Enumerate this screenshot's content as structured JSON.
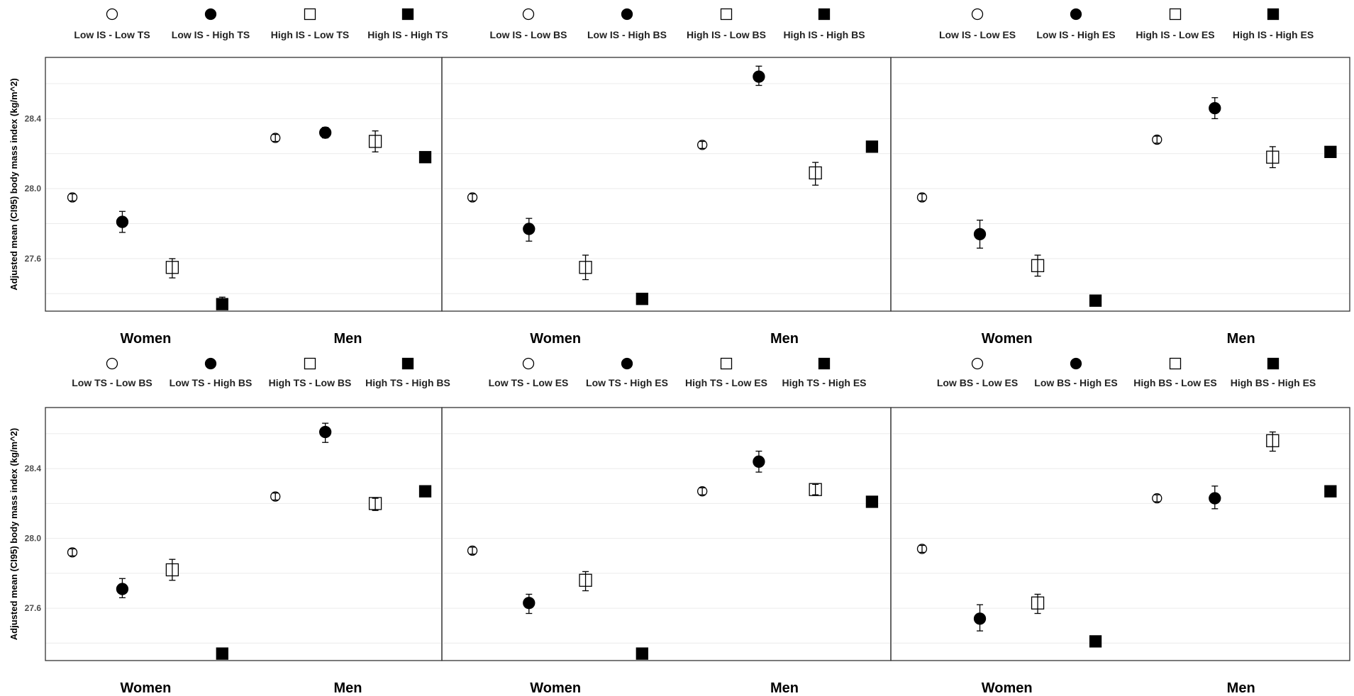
{
  "chart_data": {
    "type": "scatter",
    "y_axis": {
      "label": "Adjusted mean (CI95) body mass index (kg/m^2)",
      "ticks": [
        27.6,
        28.0,
        28.4
      ],
      "ylim": [
        27.3,
        28.75
      ]
    },
    "rows": [
      {
        "row": "top",
        "panels": [
          {
            "legend": [
              "Low IS - Low TS",
              "Low IS - High TS",
              "High IS - Low TS",
              "High IS - High TS"
            ],
            "groups": [
              "Women",
              "Men"
            ],
            "points": [
              {
                "group": "Women",
                "series": 0,
                "y": 27.95,
                "lo": 27.93,
                "hi": 27.97
              },
              {
                "group": "Women",
                "series": 1,
                "y": 27.81,
                "lo": 27.75,
                "hi": 27.87
              },
              {
                "group": "Women",
                "series": 2,
                "y": 27.55,
                "lo": 27.49,
                "hi": 27.6
              },
              {
                "group": "Women",
                "series": 3,
                "y": 27.34,
                "lo": 27.31,
                "hi": 27.38
              },
              {
                "group": "Men",
                "series": 0,
                "y": 28.29,
                "lo": 28.27,
                "hi": 28.31
              },
              {
                "group": "Men",
                "series": 1,
                "y": 28.32,
                "lo": 28.29,
                "hi": 28.35
              },
              {
                "group": "Men",
                "series": 2,
                "y": 28.27,
                "lo": 28.21,
                "hi": 28.33
              },
              {
                "group": "Men",
                "series": 3,
                "y": 28.18,
                "lo": 28.15,
                "hi": 28.21
              }
            ]
          },
          {
            "legend": [
              "Low IS - Low BS",
              "Low IS - High BS",
              "High IS - Low BS",
              "High IS - High BS"
            ],
            "groups": [
              "Women",
              "Men"
            ],
            "points": [
              {
                "group": "Women",
                "series": 0,
                "y": 27.95,
                "lo": 27.93,
                "hi": 27.97
              },
              {
                "group": "Women",
                "series": 1,
                "y": 27.77,
                "lo": 27.7,
                "hi": 27.83
              },
              {
                "group": "Women",
                "series": 2,
                "y": 27.55,
                "lo": 27.48,
                "hi": 27.62
              },
              {
                "group": "Women",
                "series": 3,
                "y": 27.37,
                "lo": 27.34,
                "hi": 27.4
              },
              {
                "group": "Men",
                "series": 0,
                "y": 28.25,
                "lo": 28.23,
                "hi": 28.27
              },
              {
                "group": "Men",
                "series": 1,
                "y": 28.64,
                "lo": 28.59,
                "hi": 28.7
              },
              {
                "group": "Men",
                "series": 2,
                "y": 28.09,
                "lo": 28.02,
                "hi": 28.15
              },
              {
                "group": "Men",
                "series": 3,
                "y": 28.24,
                "lo": 28.21,
                "hi": 28.27
              }
            ]
          },
          {
            "legend": [
              "Low IS - Low ES",
              "Low IS - High ES",
              "High IS - Low ES",
              "High IS - High ES"
            ],
            "groups": [
              "Women",
              "Men"
            ],
            "points": [
              {
                "group": "Women",
                "series": 0,
                "y": 27.95,
                "lo": 27.93,
                "hi": 27.97
              },
              {
                "group": "Women",
                "series": 1,
                "y": 27.74,
                "lo": 27.66,
                "hi": 27.82
              },
              {
                "group": "Women",
                "series": 2,
                "y": 27.56,
                "lo": 27.5,
                "hi": 27.62
              },
              {
                "group": "Women",
                "series": 3,
                "y": 27.36,
                "lo": 27.33,
                "hi": 27.39
              },
              {
                "group": "Men",
                "series": 0,
                "y": 28.28,
                "lo": 28.26,
                "hi": 28.3
              },
              {
                "group": "Men",
                "series": 1,
                "y": 28.46,
                "lo": 28.4,
                "hi": 28.52
              },
              {
                "group": "Men",
                "series": 2,
                "y": 28.18,
                "lo": 28.12,
                "hi": 28.24
              },
              {
                "group": "Men",
                "series": 3,
                "y": 28.21,
                "lo": 28.18,
                "hi": 28.24
              }
            ]
          }
        ]
      },
      {
        "row": "bottom",
        "panels": [
          {
            "legend": [
              "Low TS - Low BS",
              "Low TS - High BS",
              "High TS - Low BS",
              "High TS - High BS"
            ],
            "groups": [
              "Women",
              "Men"
            ],
            "points": [
              {
                "group": "Women",
                "series": 0,
                "y": 27.92,
                "lo": 27.9,
                "hi": 27.94
              },
              {
                "group": "Women",
                "series": 1,
                "y": 27.71,
                "lo": 27.66,
                "hi": 27.77
              },
              {
                "group": "Women",
                "series": 2,
                "y": 27.82,
                "lo": 27.76,
                "hi": 27.88
              },
              {
                "group": "Women",
                "series": 3,
                "y": 27.34,
                "lo": 27.31,
                "hi": 27.37
              },
              {
                "group": "Men",
                "series": 0,
                "y": 28.24,
                "lo": 28.22,
                "hi": 28.26
              },
              {
                "group": "Men",
                "series": 1,
                "y": 28.61,
                "lo": 28.55,
                "hi": 28.66
              },
              {
                "group": "Men",
                "series": 2,
                "y": 28.2,
                "lo": 28.16,
                "hi": 28.23
              },
              {
                "group": "Men",
                "series": 3,
                "y": 28.27,
                "lo": 28.24,
                "hi": 28.3
              }
            ]
          },
          {
            "legend": [
              "Low TS - Low ES",
              "Low TS - High ES",
              "High TS - Low ES",
              "High TS - High ES"
            ],
            "groups": [
              "Women",
              "Men"
            ],
            "points": [
              {
                "group": "Women",
                "series": 0,
                "y": 27.93,
                "lo": 27.91,
                "hi": 27.95
              },
              {
                "group": "Women",
                "series": 1,
                "y": 27.63,
                "lo": 27.57,
                "hi": 27.68
              },
              {
                "group": "Women",
                "series": 2,
                "y": 27.76,
                "lo": 27.7,
                "hi": 27.81
              },
              {
                "group": "Women",
                "series": 3,
                "y": 27.34,
                "lo": 27.31,
                "hi": 27.37
              },
              {
                "group": "Men",
                "series": 0,
                "y": 28.27,
                "lo": 28.25,
                "hi": 28.29
              },
              {
                "group": "Men",
                "series": 1,
                "y": 28.44,
                "lo": 28.38,
                "hi": 28.5
              },
              {
                "group": "Men",
                "series": 2,
                "y": 28.28,
                "lo": 28.25,
                "hi": 28.31
              },
              {
                "group": "Men",
                "series": 3,
                "y": 28.21,
                "lo": 28.18,
                "hi": 28.24
              }
            ]
          },
          {
            "legend": [
              "Low BS - Low ES",
              "Low BS - High ES",
              "High BS - Low ES",
              "High BS - High ES"
            ],
            "groups": [
              "Women",
              "Men"
            ],
            "points": [
              {
                "group": "Women",
                "series": 0,
                "y": 27.94,
                "lo": 27.92,
                "hi": 27.96
              },
              {
                "group": "Women",
                "series": 1,
                "y": 27.54,
                "lo": 27.47,
                "hi": 27.62
              },
              {
                "group": "Women",
                "series": 2,
                "y": 27.63,
                "lo": 27.57,
                "hi": 27.68
              },
              {
                "group": "Women",
                "series": 3,
                "y": 27.41,
                "lo": 27.38,
                "hi": 27.44
              },
              {
                "group": "Men",
                "series": 0,
                "y": 28.23,
                "lo": 28.21,
                "hi": 28.25
              },
              {
                "group": "Men",
                "series": 1,
                "y": 28.23,
                "lo": 28.17,
                "hi": 28.3
              },
              {
                "group": "Men",
                "series": 2,
                "y": 28.56,
                "lo": 28.5,
                "hi": 28.61
              },
              {
                "group": "Men",
                "series": 3,
                "y": 28.27,
                "lo": 28.24,
                "hi": 28.3
              }
            ]
          }
        ]
      }
    ],
    "series_shapes": [
      "open-circle",
      "filled-circle",
      "open-square",
      "filled-square"
    ],
    "grid": true,
    "legend_placement": "top",
    "colors": {
      "marker": "#000000",
      "grid": "#ebebeb",
      "frame": "#333333"
    }
  }
}
